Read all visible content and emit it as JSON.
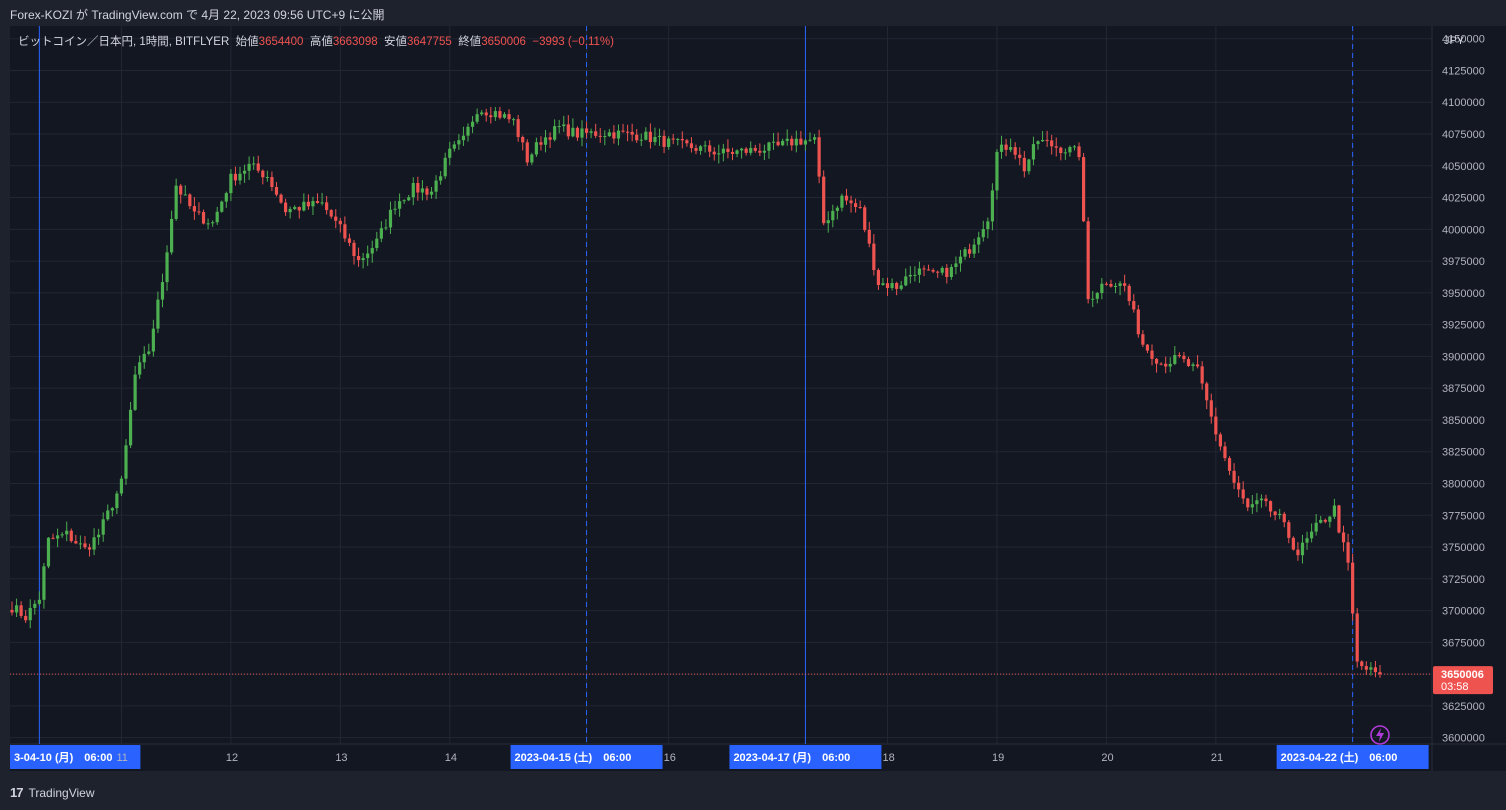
{
  "header": {
    "publish_line": "Forex-KOZI が TradingView.com で 4月 22, 2023 09:56 UTC+9 に公開"
  },
  "legend": {
    "symbol": "ビットコイン／日本円, 1時間, BITFLYER",
    "open_label": "始値",
    "open_value": "3654400",
    "high_label": "高値",
    "high_value": "3663098",
    "low_label": "安値",
    "low_value": "3647755",
    "close_label": "終値",
    "close_value": "3650006",
    "change": "−3993 (−0.11%)"
  },
  "price_axis": {
    "currency": "JPY"
  },
  "last_price": {
    "value": "3650006",
    "countdown": "03:58"
  },
  "footer": {
    "brand": "TradingView",
    "logo": "tradingview-logo-icon"
  },
  "colors": {
    "background": "#131722",
    "up": "#26a69a",
    "up_candle": "#4caf50",
    "down": "#ef5350",
    "grid": "#232733",
    "marker": "#2962ff",
    "lightning": "#b03ad8"
  },
  "chart_data": {
    "type": "candlestick",
    "title": "ビットコイン／日本円, 1時間, BITFLYER",
    "ylabel": "JPY",
    "ylim": [
      3595000,
      4160000
    ],
    "y_ticks": [
      3600000,
      3625000,
      3650000,
      3675000,
      3700000,
      3725000,
      3750000,
      3775000,
      3800000,
      3825000,
      3850000,
      3875000,
      3900000,
      3925000,
      3950000,
      3975000,
      4000000,
      4025000,
      4050000,
      4075000,
      4100000,
      4125000,
      4150000
    ],
    "x_ticks": [
      {
        "label": "3-04-10 (月)　06:00",
        "t": 6,
        "highlight": true
      },
      {
        "label": "11",
        "t": 24
      },
      {
        "label": "12",
        "t": 48
      },
      {
        "label": "13",
        "t": 72
      },
      {
        "label": "14",
        "t": 96
      },
      {
        "label": "2023-04-15 (土)　06:00",
        "t": 126,
        "highlight": true
      },
      {
        "label": "16",
        "t": 144
      },
      {
        "label": "2023-04-17 (月)　06:00",
        "t": 174,
        "highlight": true
      },
      {
        "label": "18",
        "t": 192
      },
      {
        "label": "19",
        "t": 216
      },
      {
        "label": "20",
        "t": 240
      },
      {
        "label": "21",
        "t": 264
      },
      {
        "label": "2023-04-22 (土)　06:00",
        "t": 294,
        "highlight": true
      }
    ],
    "markers": [
      {
        "t": 6,
        "style": "solid"
      },
      {
        "t": 126,
        "style": "dashed"
      },
      {
        "t": 174,
        "style": "solid"
      },
      {
        "t": 294,
        "style": "dashed"
      }
    ],
    "anchors": [
      [
        0,
        3703000
      ],
      [
        3,
        3695000
      ],
      [
        6,
        3710000
      ],
      [
        8,
        3755000
      ],
      [
        12,
        3760000
      ],
      [
        16,
        3748000
      ],
      [
        19,
        3760000
      ],
      [
        24,
        3800000
      ],
      [
        27,
        3885000
      ],
      [
        30,
        3905000
      ],
      [
        33,
        3960000
      ],
      [
        36,
        4035000
      ],
      [
        40,
        4012000
      ],
      [
        44,
        4005000
      ],
      [
        48,
        4040000
      ],
      [
        52,
        4050000
      ],
      [
        56,
        4042000
      ],
      [
        60,
        4015000
      ],
      [
        64,
        4018000
      ],
      [
        68,
        4020000
      ],
      [
        72,
        4000000
      ],
      [
        76,
        3975000
      ],
      [
        80,
        3990000
      ],
      [
        84,
        4020000
      ],
      [
        88,
        4032000
      ],
      [
        92,
        4030000
      ],
      [
        96,
        4060000
      ],
      [
        99,
        4070000
      ],
      [
        102,
        4095000
      ],
      [
        106,
        4092000
      ],
      [
        110,
        4085000
      ],
      [
        113,
        4055000
      ],
      [
        116,
        4070000
      ],
      [
        120,
        4080000
      ],
      [
        124,
        4075000
      ],
      [
        130,
        4076000
      ],
      [
        138,
        4074000
      ],
      [
        144,
        4068000
      ],
      [
        150,
        4064000
      ],
      [
        156,
        4060000
      ],
      [
        162,
        4062000
      ],
      [
        168,
        4065000
      ],
      [
        172,
        4070000
      ],
      [
        176,
        4070000
      ],
      [
        178,
        4005000
      ],
      [
        182,
        4025000
      ],
      [
        186,
        4015000
      ],
      [
        190,
        3958000
      ],
      [
        194,
        3955000
      ],
      [
        198,
        3968000
      ],
      [
        202,
        3963000
      ],
      [
        206,
        3968000
      ],
      [
        210,
        3985000
      ],
      [
        214,
        4010000
      ],
      [
        216,
        4060000
      ],
      [
        219,
        4068000
      ],
      [
        222,
        4048000
      ],
      [
        225,
        4070000
      ],
      [
        229,
        4065000
      ],
      [
        232,
        4062000
      ],
      [
        234,
        4060000
      ],
      [
        236,
        3945000
      ],
      [
        240,
        3960000
      ],
      [
        244,
        3955000
      ],
      [
        248,
        3910000
      ],
      [
        252,
        3895000
      ],
      [
        256,
        3898000
      ],
      [
        260,
        3888000
      ],
      [
        264,
        3840000
      ],
      [
        268,
        3800000
      ],
      [
        271,
        3780000
      ],
      [
        274,
        3785000
      ],
      [
        278,
        3772000
      ],
      [
        282,
        3745000
      ],
      [
        286,
        3765000
      ],
      [
        290,
        3780000
      ],
      [
        293,
        3735000
      ],
      [
        295,
        3658000
      ],
      [
        298,
        3652000
      ],
      [
        300,
        3650006
      ]
    ]
  }
}
